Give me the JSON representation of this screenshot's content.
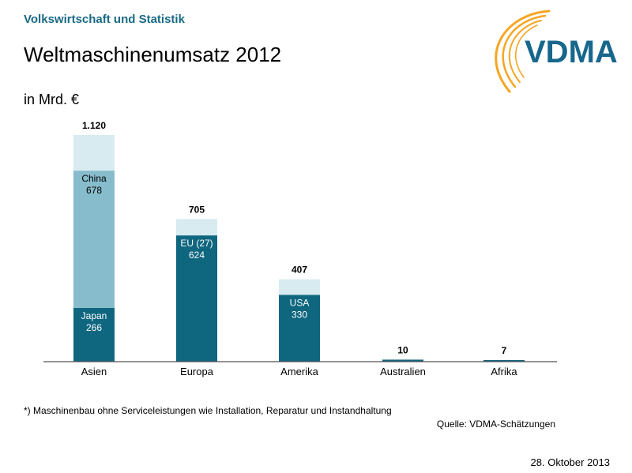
{
  "header": {
    "department": "Volkswirtschaft und Statistik",
    "title": "Weltmaschinenumsatz 2012",
    "unit": "in Mrd. €"
  },
  "logo": {
    "text": "VDMA"
  },
  "colors": {
    "dark": "#0f667f",
    "medium": "#86bccb",
    "light": "#d7ebf1",
    "axis": "#555555",
    "logo_blue": "#17678c",
    "logo_orange": "#f5a623"
  },
  "chart_data": {
    "type": "bar",
    "stacked": true,
    "categories": [
      "Asien",
      "Europa",
      "Amerika",
      "Australien",
      "Afrika"
    ],
    "totals": [
      1120,
      705,
      407,
      10,
      7
    ],
    "total_labels": [
      "1.120",
      "705",
      "407",
      "10",
      "7"
    ],
    "ylim": [
      0,
      1120
    ],
    "segments": [
      [
        {
          "name": "Japan",
          "value": 266,
          "shade": "dark",
          "label_name": "Japan",
          "label_value": "266"
        },
        {
          "name": "China",
          "value": 678,
          "shade": "medium",
          "label_name": "China",
          "label_value": "678"
        },
        {
          "name": "",
          "value": 176,
          "shade": "light"
        }
      ],
      [
        {
          "name": "EU (27)",
          "value": 624,
          "shade": "dark",
          "label_name": "EU (27)",
          "label_value": "624"
        },
        {
          "name": "",
          "value": 81,
          "shade": "light"
        }
      ],
      [
        {
          "name": "USA",
          "value": 330,
          "shade": "dark",
          "label_name": "USA",
          "label_value": "330"
        },
        {
          "name": "",
          "value": 77,
          "shade": "light"
        }
      ],
      [
        {
          "name": "",
          "value": 10,
          "shade": "dark"
        }
      ],
      [
        {
          "name": "",
          "value": 7,
          "shade": "dark"
        }
      ]
    ]
  },
  "footer": {
    "footnote": "*) Maschinenbau ohne Serviceleistungen  wie Installation, Reparatur und Instandhaltung",
    "source": "Quelle: VDMA-Schätzungen",
    "date": "28. Oktober 2013"
  }
}
